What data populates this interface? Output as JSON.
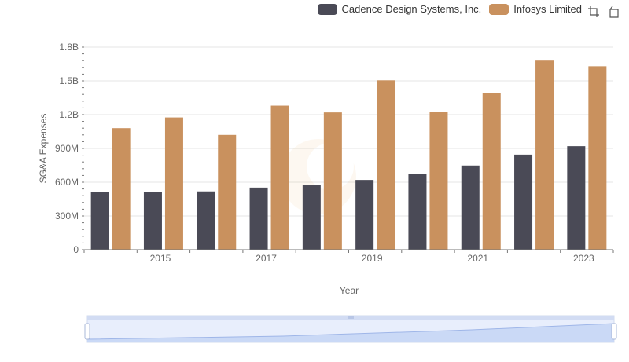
{
  "legend": {
    "items": [
      {
        "label": "Cadence Design Systems, Inc.",
        "color": "#4a4a56"
      },
      {
        "label": "Infosys Limited",
        "color": "#c9915e"
      }
    ]
  },
  "toolbar": {
    "icons": [
      "zoom-icon",
      "restore-icon"
    ]
  },
  "chart_data": {
    "type": "bar",
    "categories": [
      "2014",
      "2015",
      "2016",
      "2017",
      "2018",
      "2019",
      "2020",
      "2021",
      "2022",
      "2023"
    ],
    "x_tick_labels": [
      "2015",
      "2017",
      "2019",
      "2021",
      "2023"
    ],
    "series": [
      {
        "name": "Cadence Design Systems, Inc.",
        "color": "#4a4a56",
        "values": [
          510000000,
          510000000,
          518000000,
          552000000,
          572000000,
          620000000,
          670000000,
          748000000,
          845000000,
          920000000
        ]
      },
      {
        "name": "Infosys Limited",
        "color": "#c9915e",
        "values": [
          1080000000,
          1175000000,
          1020000000,
          1280000000,
          1220000000,
          1505000000,
          1225000000,
          1390000000,
          1680000000,
          1630000000
        ]
      }
    ],
    "xlabel": "Year",
    "ylabel": "SG&A Expenses",
    "ylim": [
      0,
      1800000000
    ],
    "y_ticks": [
      {
        "value": 0,
        "label": "0"
      },
      {
        "value": 300000000,
        "label": "300M"
      },
      {
        "value": 600000000,
        "label": "600M"
      },
      {
        "value": 900000000,
        "label": "900M"
      },
      {
        "value": 1200000000,
        "label": "1.2B"
      },
      {
        "value": 1500000000,
        "label": "1.5B"
      },
      {
        "value": 1800000000,
        "label": "1.8B"
      }
    ],
    "grid": true,
    "legend_position": "top-right",
    "data_zoom": {
      "start": 0,
      "end": 100
    }
  }
}
